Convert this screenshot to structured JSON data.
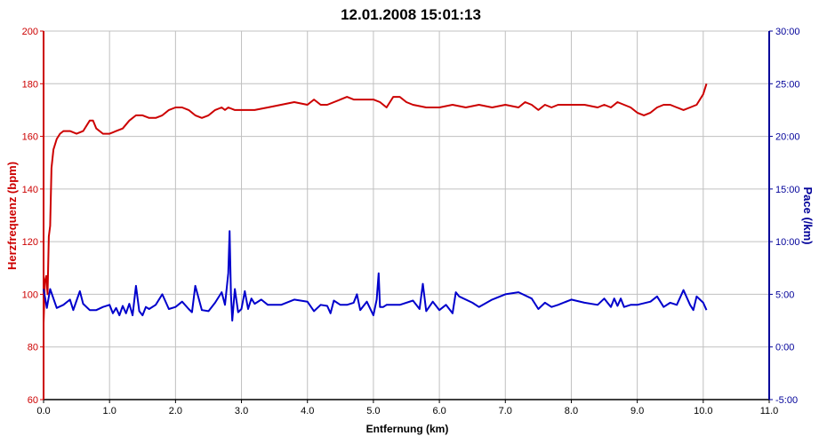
{
  "chart_data": {
    "type": "line",
    "title": "12.01.2008 15:01:13",
    "xlabel": "Entfernung (km)",
    "ylabel_left": "Herzfrequenz (bpm)",
    "ylabel_right": "Pace (/km)",
    "xlim": [
      0,
      11
    ],
    "ylim_left": [
      60,
      200
    ],
    "ylim_right": [
      -5,
      30
    ],
    "x_ticks": [
      "0.0",
      "1.0",
      "2.0",
      "3.0",
      "4.0",
      "5.0",
      "6.0",
      "7.0",
      "8.0",
      "9.0",
      "10.0",
      "11.0"
    ],
    "y_ticks_left": [
      "60",
      "80",
      "100",
      "120",
      "140",
      "160",
      "180",
      "200"
    ],
    "y_ticks_right": [
      "-5:00",
      "0:00",
      "5:00",
      "10:00",
      "15:00",
      "20:00",
      "25:00",
      "30:00"
    ],
    "grid": true,
    "colors": {
      "heart_rate": "#cc0000",
      "pace": "#0000cc",
      "left_axis": "#cc0000",
      "right_axis": "#000099",
      "grid": "#c0c0c0"
    },
    "series": [
      {
        "axis": "left",
        "x": [
          0.0,
          0.02,
          0.04,
          0.06,
          0.08,
          0.1,
          0.12,
          0.15,
          0.2,
          0.25,
          0.3,
          0.4,
          0.5,
          0.6,
          0.7,
          0.75,
          0.8,
          0.9,
          1.0,
          1.1,
          1.2,
          1.3,
          1.4,
          1.5,
          1.6,
          1.7,
          1.8,
          1.9,
          2.0,
          2.1,
          2.2,
          2.3,
          2.4,
          2.5,
          2.6,
          2.7,
          2.75,
          2.8,
          2.9,
          3.0,
          3.2,
          3.4,
          3.6,
          3.8,
          4.0,
          4.1,
          4.2,
          4.3,
          4.5,
          4.6,
          4.7,
          4.8,
          5.0,
          5.1,
          5.2,
          5.3,
          5.4,
          5.5,
          5.6,
          5.8,
          6.0,
          6.2,
          6.4,
          6.6,
          6.8,
          7.0,
          7.2,
          7.3,
          7.4,
          7.5,
          7.6,
          7.7,
          7.8,
          8.0,
          8.2,
          8.4,
          8.5,
          8.6,
          8.7,
          8.8,
          8.9,
          9.0,
          9.1,
          9.2,
          9.3,
          9.4,
          9.5,
          9.6,
          9.7,
          9.8,
          9.9,
          10.0,
          10.05
        ],
        "values": [
          89,
          105,
          107,
          100,
          122,
          126,
          148,
          155,
          159,
          161,
          162,
          162,
          161,
          162,
          166,
          166,
          163,
          161,
          161,
          162,
          163,
          166,
          168,
          168,
          167,
          167,
          168,
          170,
          171,
          171,
          170,
          168,
          167,
          168,
          170,
          171,
          170,
          171,
          170,
          170,
          170,
          171,
          172,
          173,
          172,
          174,
          172,
          172,
          174,
          175,
          174,
          174,
          174,
          173,
          171,
          175,
          175,
          173,
          172,
          171,
          171,
          172,
          171,
          172,
          171,
          172,
          171,
          173,
          172,
          170,
          172,
          171,
          172,
          172,
          172,
          171,
          172,
          171,
          173,
          172,
          171,
          169,
          168,
          169,
          171,
          172,
          172,
          171,
          170,
          171,
          172,
          176,
          180
        ]
      },
      {
        "axis": "right",
        "x": [
          0.0,
          0.05,
          0.1,
          0.15,
          0.2,
          0.3,
          0.4,
          0.45,
          0.5,
          0.55,
          0.6,
          0.7,
          0.8,
          0.9,
          1.0,
          1.05,
          1.1,
          1.15,
          1.2,
          1.25,
          1.3,
          1.35,
          1.4,
          1.45,
          1.5,
          1.55,
          1.6,
          1.7,
          1.8,
          1.9,
          2.0,
          2.1,
          2.2,
          2.25,
          2.3,
          2.4,
          2.5,
          2.6,
          2.7,
          2.75,
          2.8,
          2.82,
          2.84,
          2.86,
          2.9,
          2.95,
          3.0,
          3.05,
          3.1,
          3.15,
          3.2,
          3.3,
          3.4,
          3.6,
          3.8,
          4.0,
          4.1,
          4.2,
          4.3,
          4.35,
          4.4,
          4.5,
          4.6,
          4.7,
          4.75,
          4.8,
          4.9,
          5.0,
          5.05,
          5.08,
          5.1,
          5.15,
          5.2,
          5.4,
          5.6,
          5.7,
          5.75,
          5.8,
          5.9,
          6.0,
          6.1,
          6.2,
          6.25,
          6.3,
          6.5,
          6.6,
          6.8,
          7.0,
          7.2,
          7.4,
          7.5,
          7.6,
          7.7,
          7.8,
          8.0,
          8.2,
          8.4,
          8.5,
          8.6,
          8.65,
          8.7,
          8.75,
          8.8,
          8.9,
          9.0,
          9.2,
          9.3,
          9.4,
          9.5,
          9.6,
          9.7,
          9.8,
          9.85,
          9.9,
          10.0,
          10.05
        ],
        "values": [
          5.5,
          3.7,
          5.5,
          4.6,
          3.7,
          4.0,
          4.5,
          3.5,
          4.4,
          5.3,
          4.1,
          3.5,
          3.5,
          3.8,
          4.0,
          3.2,
          3.7,
          3.0,
          3.9,
          3.2,
          4.1,
          3.0,
          5.8,
          3.4,
          3.0,
          3.8,
          3.6,
          4.0,
          5.0,
          3.6,
          3.8,
          4.3,
          3.6,
          3.3,
          5.8,
          3.5,
          3.4,
          4.2,
          5.2,
          4.0,
          7.0,
          11.0,
          5.0,
          2.5,
          5.5,
          3.3,
          3.6,
          5.3,
          3.6,
          4.6,
          4.1,
          4.5,
          4.0,
          4.0,
          4.5,
          4.3,
          3.4,
          4.0,
          3.9,
          3.2,
          4.4,
          4.0,
          4.0,
          4.2,
          5.0,
          3.5,
          4.3,
          3.0,
          4.5,
          7.0,
          3.8,
          3.8,
          4.0,
          4.0,
          4.4,
          3.6,
          6.0,
          3.4,
          4.3,
          3.5,
          4.0,
          3.2,
          5.2,
          4.8,
          4.2,
          3.8,
          4.5,
          5.0,
          5.2,
          4.6,
          3.6,
          4.2,
          3.8,
          4.0,
          4.5,
          4.2,
          4.0,
          4.6,
          3.8,
          4.6,
          3.9,
          4.6,
          3.8,
          4.0,
          4.0,
          4.3,
          4.8,
          3.8,
          4.2,
          4.0,
          5.4,
          4.0,
          3.5,
          4.8,
          4.2,
          3.5
        ]
      }
    ]
  }
}
